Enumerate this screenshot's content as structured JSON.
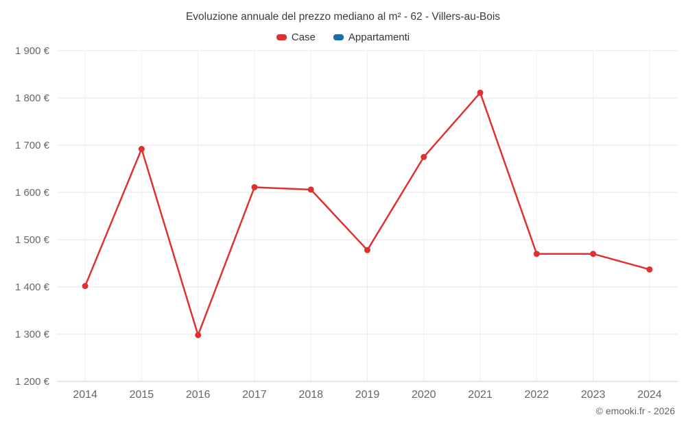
{
  "title": "Evoluzione annuale del prezzo mediano al m² - 62 - Villers-au-Bois",
  "legend": {
    "items": [
      {
        "label": "Case",
        "color": "#e03131"
      },
      {
        "label": "Appartamenti",
        "color": "#1c6ea4"
      }
    ]
  },
  "footer": {
    "credit": "© emooki.fr - 2026"
  },
  "chart_data": {
    "type": "line",
    "title": "Evoluzione annuale del prezzo mediano al m² - 62 - Villers-au-Bois",
    "categories": [
      "2014",
      "2015",
      "2016",
      "2017",
      "2018",
      "2019",
      "2020",
      "2021",
      "2022",
      "2023",
      "2024"
    ],
    "series": [
      {
        "name": "Case",
        "color": "#e03131",
        "values": [
          1402,
          1692,
          1298,
          1611,
          1606,
          1478,
          1675,
          1811,
          1470,
          1470,
          1437
        ]
      },
      {
        "name": "Appartamenti",
        "color": "#1c6ea4",
        "values": []
      }
    ],
    "xlabel": "",
    "ylabel": "",
    "ylim": [
      1200,
      1900
    ],
    "ytick_step": 100,
    "ytick_suffix": " €",
    "grid": true,
    "legend_position": "top"
  }
}
